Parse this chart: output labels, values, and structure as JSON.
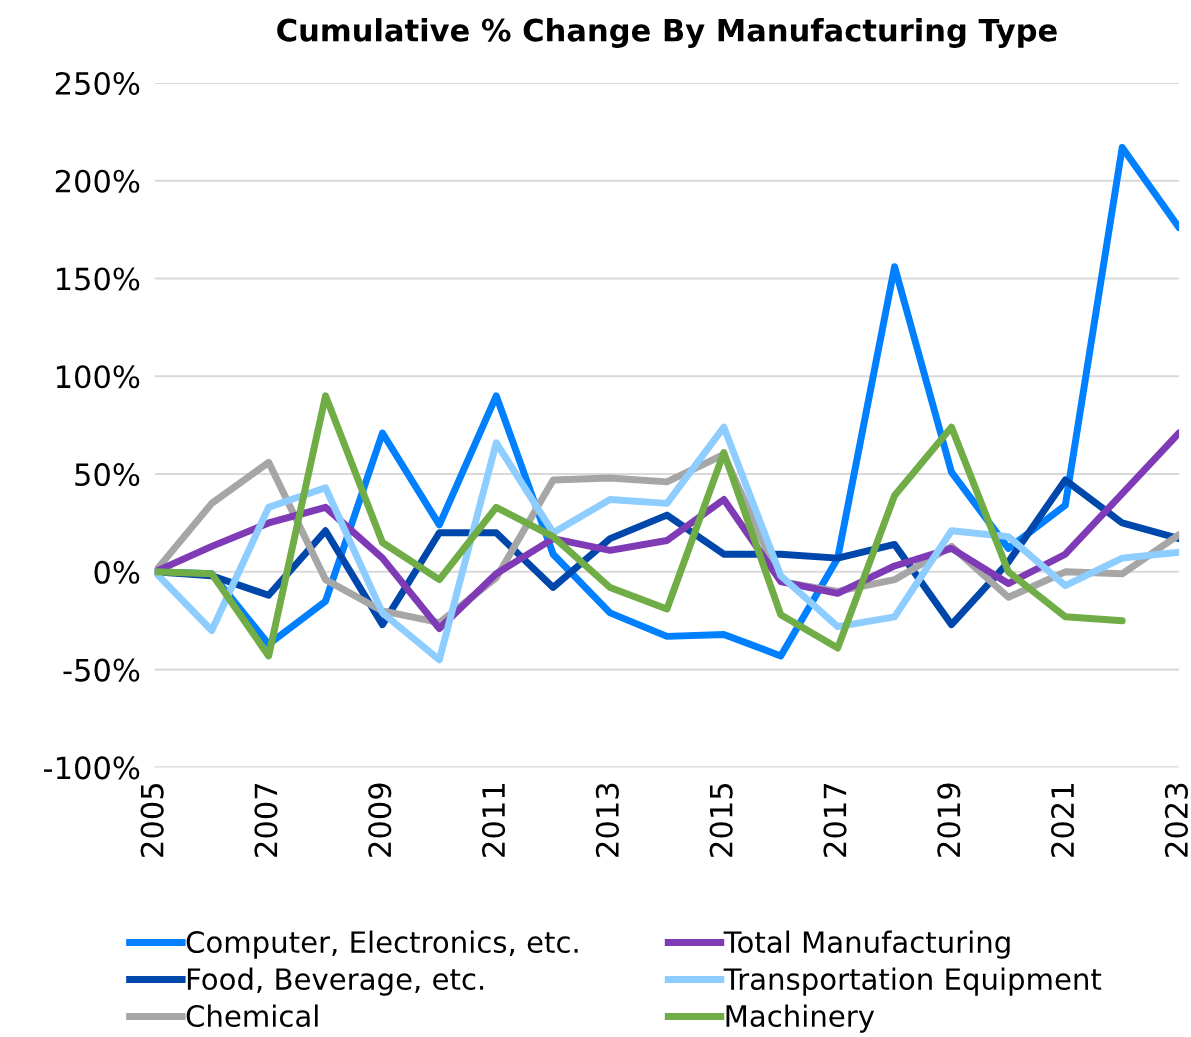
{
  "chart_data": {
    "type": "line",
    "title": "Cumulative % Change By Manufacturing Type",
    "x": [
      2005,
      2006,
      2007,
      2008,
      2009,
      2010,
      2011,
      2012,
      2013,
      2014,
      2015,
      2016,
      2017,
      2018,
      2019,
      2020,
      2021,
      2022,
      2023
    ],
    "series": [
      {
        "name": "Computer, Electronics, etc.",
        "color": "#0080ff",
        "values": [
          0,
          -1,
          -37,
          -15,
          71,
          24,
          90,
          9,
          -21,
          -33,
          -32,
          -43,
          7,
          156,
          51,
          12,
          34,
          217,
          176
        ]
      },
      {
        "name": "Food, Beverage, etc.",
        "color": "#0047ab",
        "values": [
          0,
          -2,
          -12,
          21,
          -27,
          20,
          20,
          -8,
          17,
          29,
          9,
          9,
          7,
          14,
          -27,
          5,
          47,
          25,
          17
        ]
      },
      {
        "name": "Chemical",
        "color": "#a6a6a6",
        "values": [
          0,
          35,
          56,
          -4,
          -20,
          -26,
          -3,
          47,
          48,
          46,
          60,
          -5,
          -10,
          -4,
          13,
          -13,
          0,
          -1,
          19
        ]
      },
      {
        "name": "Total Manufacturing",
        "color": "#7f3ab5",
        "values": [
          0,
          13,
          25,
          33,
          7,
          -29,
          -1,
          17,
          11,
          16,
          37,
          -5,
          -11,
          3,
          12,
          -6,
          9,
          40,
          71
        ]
      },
      {
        "name": "Transportation Equipment",
        "color": "#8ecdff",
        "values": [
          0,
          -30,
          33,
          43,
          -21,
          -45,
          66,
          20,
          37,
          35,
          74,
          -2,
          -28,
          -23,
          21,
          18,
          -7,
          7,
          10
        ]
      },
      {
        "name": "Machinery",
        "color": "#70ad47",
        "values": [
          0,
          -1,
          -43,
          90,
          15,
          -4,
          33,
          18,
          -8,
          -19,
          61,
          -22,
          -39,
          39,
          74,
          0,
          -23,
          -25,
          null
        ]
      }
    ],
    "xlim": [
      2005,
      2023
    ],
    "xticks": [
      2005,
      2007,
      2009,
      2011,
      2013,
      2015,
      2017,
      2019,
      2021,
      2023
    ],
    "ylim": [
      -100,
      250
    ],
    "yticks": [
      {
        "value": -100,
        "label": "-100%"
      },
      {
        "value": -50,
        "label": "-50%"
      },
      {
        "value": 0,
        "label": "0%"
      },
      {
        "value": 50,
        "label": "50%"
      },
      {
        "value": 100,
        "label": "100%"
      },
      {
        "value": 150,
        "label": "150%"
      },
      {
        "value": 200,
        "label": "200%"
      },
      {
        "value": 250,
        "label": "250%"
      }
    ],
    "grid": "y",
    "legend": "bottom",
    "marker": "none",
    "line_style": "solid"
  }
}
